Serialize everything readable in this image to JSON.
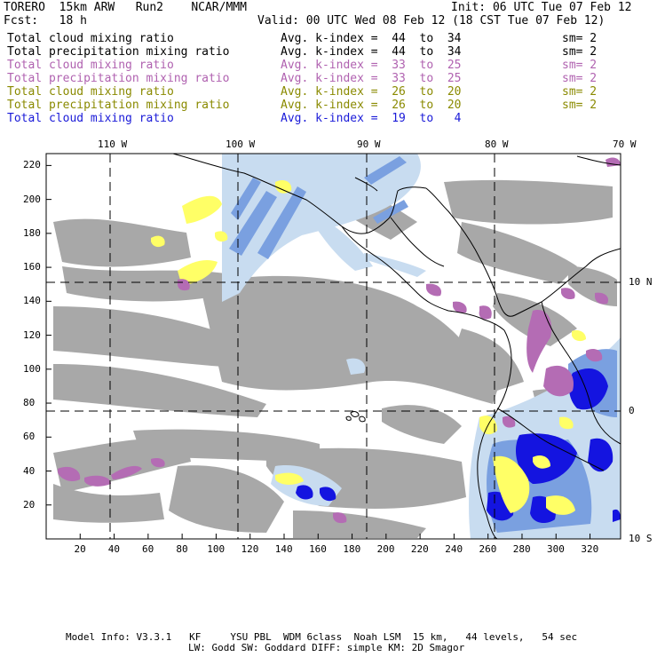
{
  "header": {
    "model": "TORERO  15km ARW   Run2    NCAR/MMM",
    "init": "Init: 06 UTC Tue 07 Feb 12",
    "fcst": "Fcst:   18 h",
    "valid": "Valid: 00 UTC Wed 08 Feb 12 (18 CST Tue 07 Feb 12)"
  },
  "legend": [
    {
      "field": "Total cloud mixing ratio",
      "k": "Avg. k-index =  44  to  34",
      "sm": "sm= 2",
      "color": "#000000"
    },
    {
      "field": "Total precipitation mixing ratio",
      "k": "Avg. k-index =  44  to  34",
      "sm": "sm= 2",
      "color": "#000000"
    },
    {
      "field": "Total cloud mixing ratio",
      "k": "Avg. k-index =  33  to  25",
      "sm": "sm= 2",
      "color": "#b062b0"
    },
    {
      "field": "Total precipitation mixing ratio",
      "k": "Avg. k-index =  33  to  25",
      "sm": "sm= 2",
      "color": "#b062b0"
    },
    {
      "field": "Total cloud mixing ratio",
      "k": "Avg. k-index =  26  to  20",
      "sm": "sm= 2",
      "color": "#8a8a00"
    },
    {
      "field": "Total precipitation mixing ratio",
      "k": "Avg. k-index =  26  to  20",
      "sm": "sm= 2",
      "color": "#8a8a00"
    },
    {
      "field": "Total cloud mixing ratio",
      "k": "Avg. k-index =  19  to   4",
      "sm": "",
      "color": "#1a1ad8"
    }
  ],
  "axes": {
    "top_lon": [
      "110 W",
      "100 W",
      "90 W",
      "80 W",
      "70 W"
    ],
    "right_lat": [
      "10 N",
      "0",
      "10 S"
    ],
    "left_ticks": [
      "220",
      "200",
      "180",
      "160",
      "140",
      "120",
      "100",
      "80",
      "60",
      "40",
      "20"
    ],
    "bottom_ticks": [
      "20",
      "40",
      "60",
      "80",
      "100",
      "120",
      "140",
      "160",
      "180",
      "200",
      "220",
      "240",
      "260",
      "280",
      "300",
      "320"
    ]
  },
  "footer": {
    "line1": "Model Info: V3.3.1   KF     YSU PBL  WDM 6class  Noah LSM  15 km,   44 levels,   54 sec",
    "line2": "LW: Godd SW: Goddard DIFF: simple KM: 2D Smagor"
  },
  "colors": {
    "gray_cloud": "#a8a8a8",
    "purple_cloud": "#b46cb4",
    "yellow_cloud": "#ffff66",
    "light_blue": "#c8dcf0",
    "mid_blue": "#7aa0e0",
    "dark_blue": "#1414e0",
    "coast": "#000000"
  }
}
